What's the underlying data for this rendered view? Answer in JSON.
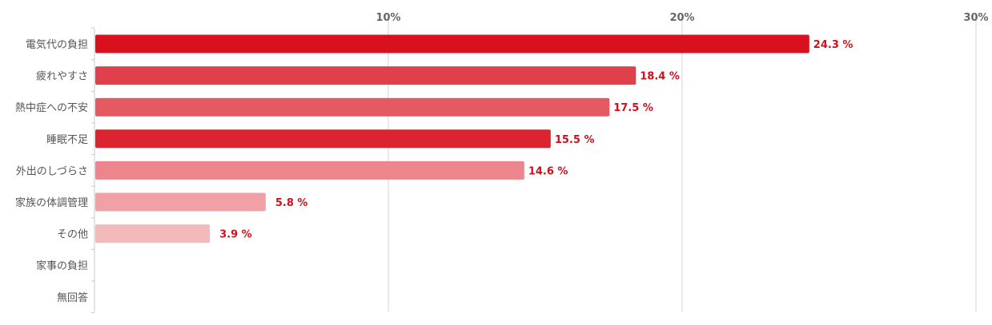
{
  "chart_data": {
    "type": "bar",
    "orientation": "horizontal",
    "categories": [
      "電気代の負担",
      "疲れやすさ",
      "熱中症への不安",
      "睡眠不足",
      "外出のしづらさ",
      "家族の体調管理",
      "その他",
      "家事の負担",
      "無回答"
    ],
    "values": [
      24.3,
      18.4,
      17.5,
      15.5,
      14.6,
      5.8,
      3.9,
      null,
      null
    ],
    "value_labels": [
      "24.3 %",
      "18.4 %",
      "17.5 %",
      "15.5 %",
      "14.6 %",
      "5.8 %",
      "3.9 %",
      "",
      ""
    ],
    "bar_colors": [
      "#d9101e",
      "#e0404b",
      "#e55a62",
      "#dc2330",
      "#ec868c",
      "#efa1a5",
      "#f3b9bb",
      "#f3b9bb",
      "#f3b9bb"
    ],
    "xlim": [
      0,
      30
    ],
    "ticks": [
      10,
      20,
      30
    ],
    "tick_labels": [
      "10%",
      "20%",
      "30%"
    ],
    "grid": true,
    "title": "",
    "xlabel": "",
    "ylabel": ""
  }
}
